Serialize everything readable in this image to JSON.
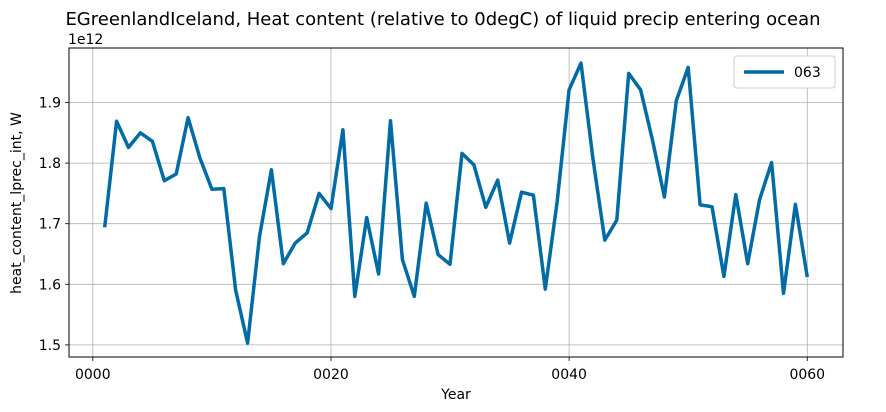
{
  "chart_data": {
    "type": "line",
    "title": "EGreenlandIceland, Heat content (relative to 0degC) of liquid precip entering ocean",
    "xlabel": "Year",
    "ylabel": "heat_content_lprec_int, W",
    "y_offset_label": "1e12",
    "xlim": [
      -2,
      63
    ],
    "ylim": [
      1.48,
      1.99
    ],
    "x_ticks": [
      0,
      20,
      40,
      60
    ],
    "x_tick_labels": [
      "0000",
      "0020",
      "0040",
      "0060"
    ],
    "y_ticks": [
      1.5,
      1.6,
      1.7,
      1.8,
      1.9
    ],
    "y_tick_labels": [
      "1.5",
      "1.6",
      "1.7",
      "1.8",
      "1.9"
    ],
    "grid": true,
    "legend_position": "top-right",
    "series": [
      {
        "name": "063",
        "color": "#006ba4",
        "x": [
          1,
          2,
          3,
          4,
          5,
          6,
          7,
          8,
          9,
          10,
          11,
          12,
          13,
          14,
          15,
          16,
          17,
          18,
          19,
          20,
          21,
          22,
          23,
          24,
          25,
          26,
          27,
          28,
          29,
          30,
          31,
          32,
          33,
          34,
          35,
          36,
          37,
          38,
          39,
          40,
          41,
          42,
          43,
          44,
          45,
          46,
          47,
          48,
          49,
          50,
          51,
          52,
          53,
          54,
          55,
          56,
          57,
          58,
          59,
          60
        ],
        "values": [
          1.694,
          1.869,
          1.826,
          1.85,
          1.836,
          1.771,
          1.782,
          1.875,
          1.808,
          1.757,
          1.758,
          1.59,
          1.503,
          1.679,
          1.789,
          1.634,
          1.668,
          1.685,
          1.75,
          1.725,
          1.855,
          1.58,
          1.71,
          1.617,
          1.87,
          1.641,
          1.58,
          1.734,
          1.649,
          1.633,
          1.816,
          1.797,
          1.727,
          1.772,
          1.668,
          1.752,
          1.747,
          1.592,
          1.737,
          1.921,
          1.965,
          1.808,
          1.673,
          1.706,
          1.948,
          1.921,
          1.838,
          1.744,
          1.903,
          1.958,
          1.731,
          1.728,
          1.613,
          1.748,
          1.634,
          1.74,
          1.801,
          1.585,
          1.732,
          1.612
        ]
      }
    ]
  }
}
